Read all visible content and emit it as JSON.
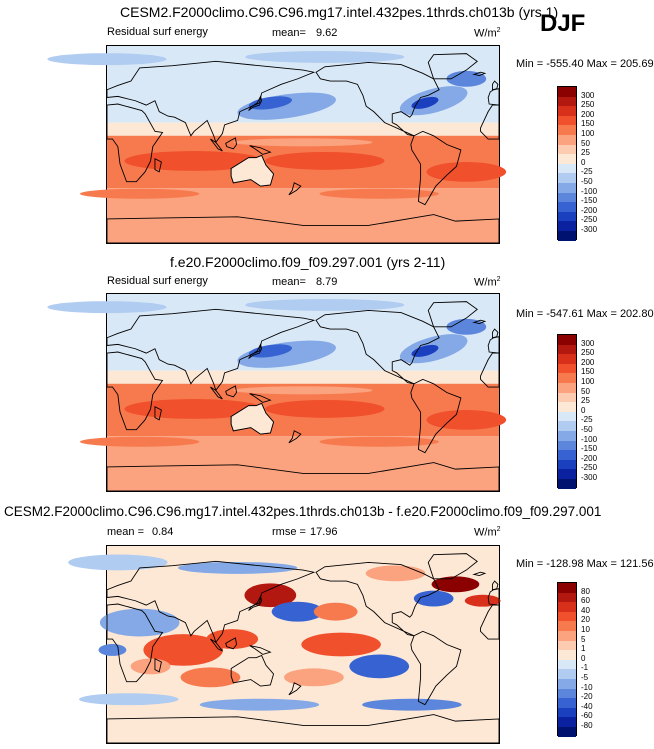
{
  "season": "DJF",
  "panels": [
    {
      "title": "CESM2.F2000climo.C96.C96.mg17.intel.432pes.1thrds.ch013b (yrs 1)",
      "variable": "Residual surf energy",
      "mean_label": "mean=",
      "mean_value": "9.62",
      "rmse_label": "",
      "rmse_value": "",
      "units": "W/m",
      "units_exp": "2",
      "minmax": "Min = -555.40 Max = 205.69",
      "colorbar_levels": [
        "300",
        "250",
        "200",
        "150",
        "100",
        "50",
        "25",
        "0",
        "-25",
        "-50",
        "-100",
        "-150",
        "-200",
        "-250",
        "-300"
      ],
      "colorbar_colors": [
        "#8b0000",
        "#b2180f",
        "#d9301c",
        "#f0502b",
        "#f77a4f",
        "#fba27f",
        "#fdcbb0",
        "#fde8d6",
        "#d9e8f7",
        "#b0ccf0",
        "#84a9e6",
        "#5b86db",
        "#3763d2",
        "#1a40c0",
        "#0a229f",
        "#001270"
      ]
    },
    {
      "title": "f.e20.F2000climo.f09_f09.297.001 (yrs 2-11)",
      "variable": "Residual surf energy",
      "mean_label": "mean=",
      "mean_value": "8.79",
      "rmse_label": "",
      "rmse_value": "",
      "units": "W/m",
      "units_exp": "2",
      "minmax": "Min = -547.61 Max = 202.80",
      "colorbar_levels": [
        "300",
        "250",
        "200",
        "150",
        "100",
        "50",
        "25",
        "0",
        "-25",
        "-50",
        "-100",
        "-150",
        "-200",
        "-250",
        "-300"
      ],
      "colorbar_colors": [
        "#8b0000",
        "#b2180f",
        "#d9301c",
        "#f0502b",
        "#f77a4f",
        "#fba27f",
        "#fdcbb0",
        "#fde8d6",
        "#d9e8f7",
        "#b0ccf0",
        "#84a9e6",
        "#5b86db",
        "#3763d2",
        "#1a40c0",
        "#0a229f",
        "#001270"
      ]
    },
    {
      "title": "CESM2.F2000climo.C96.C96.mg17.intel.432pes.1thrds.ch013b - f.e20.F2000climo.f09_f09.297.001",
      "variable": "",
      "mean_label": "mean =",
      "mean_value": "0.84",
      "rmse_label": "rmse =",
      "rmse_value": "17.96",
      "units": "W/m",
      "units_exp": "2",
      "minmax": "Min = -128.98 Max = 121.56",
      "colorbar_levels": [
        "80",
        "60",
        "40",
        "20",
        "10",
        "5",
        "1",
        "0",
        "-1",
        "-5",
        "-10",
        "-20",
        "-40",
        "-60",
        "-80"
      ],
      "colorbar_colors": [
        "#8b0000",
        "#b2180f",
        "#d9301c",
        "#f0502b",
        "#f77a4f",
        "#fba27f",
        "#fdcbb0",
        "#fde8d6",
        "#d9e8f7",
        "#b0ccf0",
        "#84a9e6",
        "#5b86db",
        "#3763d2",
        "#1a40c0",
        "#0a229f",
        "#001270"
      ]
    }
  ]
}
